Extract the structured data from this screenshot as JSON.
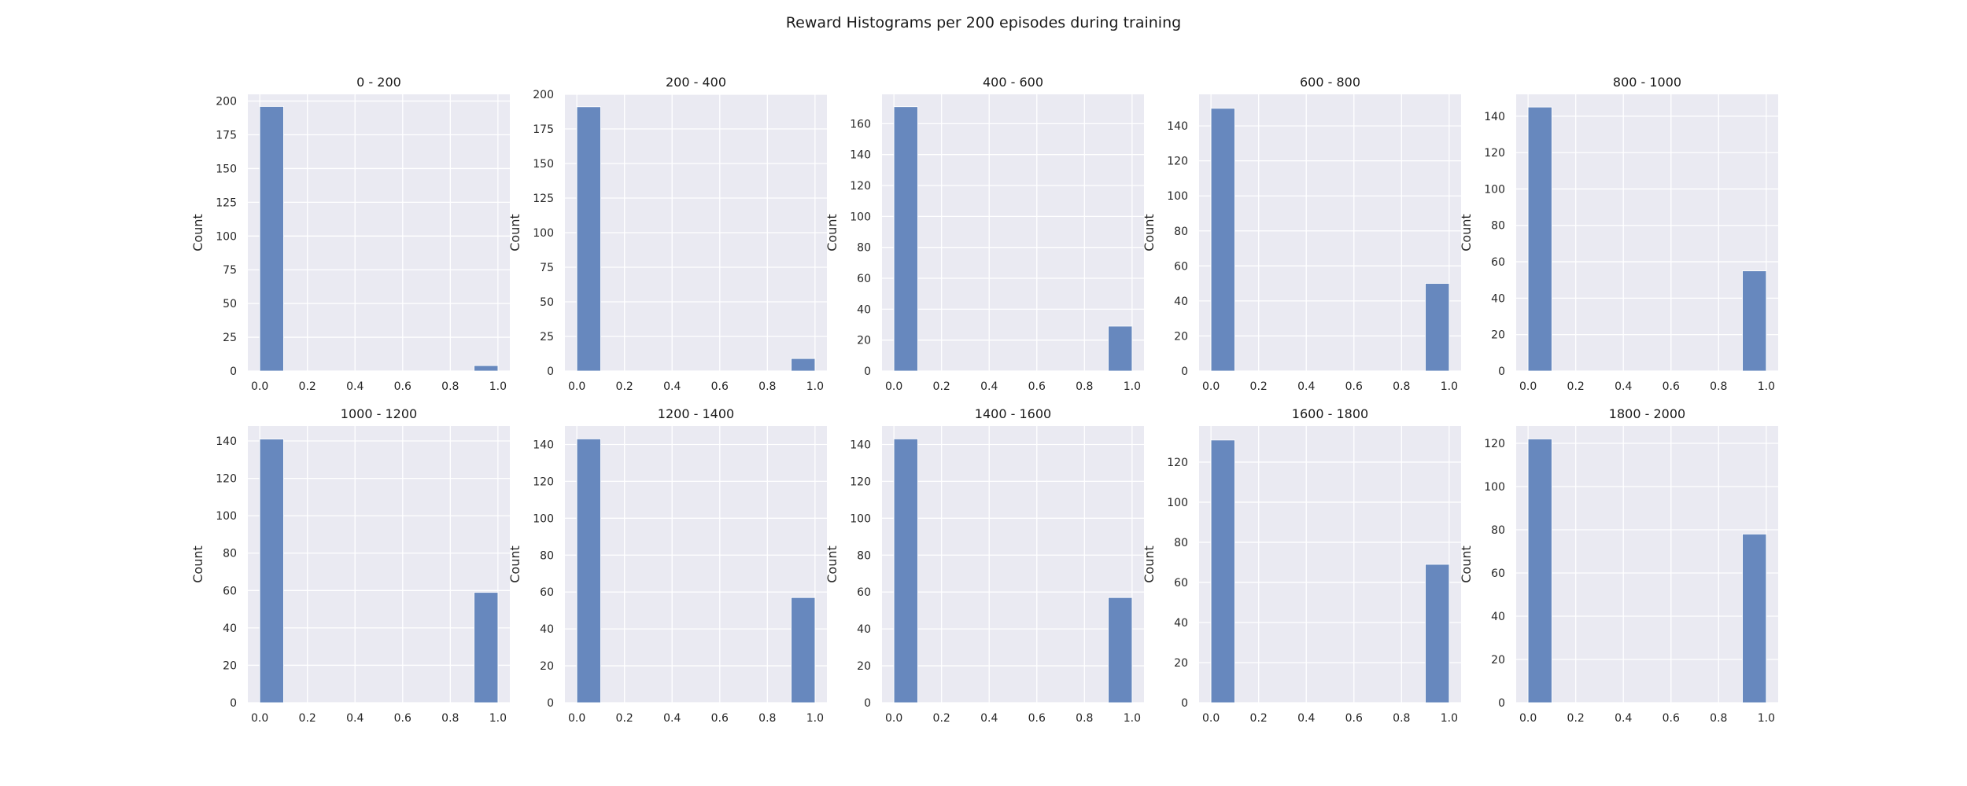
{
  "chart_data": {
    "title": "Reward Histograms per 200 episodes during training",
    "type": "bar",
    "panels": [
      {
        "title": "0 - 200",
        "ylabel": "Count",
        "xlim": [
          -0.05,
          1.05
        ],
        "ylim": [
          0,
          205
        ],
        "xticks": [
          "0.0",
          "0.2",
          "0.4",
          "0.6",
          "0.8",
          "1.0"
        ],
        "yticks": [
          0,
          25,
          50,
          75,
          100,
          125,
          150,
          175,
          200
        ],
        "bins": [
          {
            "start": 0.0,
            "end": 0.1,
            "value": 196
          },
          {
            "start": 0.9,
            "end": 1.0,
            "value": 4
          }
        ]
      },
      {
        "title": "200 - 400",
        "ylabel": "Count",
        "xlim": [
          -0.05,
          1.05
        ],
        "ylim": [
          0,
          200
        ],
        "xticks": [
          "0.0",
          "0.2",
          "0.4",
          "0.6",
          "0.8",
          "1.0"
        ],
        "yticks": [
          0,
          25,
          50,
          75,
          100,
          125,
          150,
          175,
          200
        ],
        "bins": [
          {
            "start": 0.0,
            "end": 0.1,
            "value": 191
          },
          {
            "start": 0.9,
            "end": 1.0,
            "value": 9
          }
        ]
      },
      {
        "title": "400 - 600",
        "ylabel": "Count",
        "xlim": [
          -0.05,
          1.05
        ],
        "ylim": [
          0,
          179
        ],
        "xticks": [
          "0.0",
          "0.2",
          "0.4",
          "0.6",
          "0.8",
          "1.0"
        ],
        "yticks": [
          0,
          20,
          40,
          60,
          80,
          100,
          120,
          140,
          160
        ],
        "bins": [
          {
            "start": 0.0,
            "end": 0.1,
            "value": 171
          },
          {
            "start": 0.9,
            "end": 1.0,
            "value": 29
          }
        ]
      },
      {
        "title": "600 - 800",
        "ylabel": "Count",
        "xlim": [
          -0.05,
          1.05
        ],
        "ylim": [
          0,
          158
        ],
        "xticks": [
          "0.0",
          "0.2",
          "0.4",
          "0.6",
          "0.8",
          "1.0"
        ],
        "yticks": [
          0,
          20,
          40,
          60,
          80,
          100,
          120,
          140
        ],
        "bins": [
          {
            "start": 0.0,
            "end": 0.1,
            "value": 150
          },
          {
            "start": 0.9,
            "end": 1.0,
            "value": 50
          }
        ]
      },
      {
        "title": "800 - 1000",
        "ylabel": "Count",
        "xlim": [
          -0.05,
          1.05
        ],
        "ylim": [
          0,
          152
        ],
        "xticks": [
          "0.0",
          "0.2",
          "0.4",
          "0.6",
          "0.8",
          "1.0"
        ],
        "yticks": [
          0,
          20,
          40,
          60,
          80,
          100,
          120,
          140
        ],
        "bins": [
          {
            "start": 0.0,
            "end": 0.1,
            "value": 145
          },
          {
            "start": 0.9,
            "end": 1.0,
            "value": 55
          }
        ]
      },
      {
        "title": "1000 - 1200",
        "ylabel": "Count",
        "xlim": [
          -0.05,
          1.05
        ],
        "ylim": [
          0,
          148
        ],
        "xticks": [
          "0.0",
          "0.2",
          "0.4",
          "0.6",
          "0.8",
          "1.0"
        ],
        "yticks": [
          0,
          20,
          40,
          60,
          80,
          100,
          120,
          140
        ],
        "bins": [
          {
            "start": 0.0,
            "end": 0.1,
            "value": 141
          },
          {
            "start": 0.9,
            "end": 1.0,
            "value": 59
          }
        ]
      },
      {
        "title": "1200 - 1400",
        "ylabel": "Count",
        "xlim": [
          -0.05,
          1.05
        ],
        "ylim": [
          0,
          150
        ],
        "xticks": [
          "0.0",
          "0.2",
          "0.4",
          "0.6",
          "0.8",
          "1.0"
        ],
        "yticks": [
          0,
          20,
          40,
          60,
          80,
          100,
          120,
          140
        ],
        "bins": [
          {
            "start": 0.0,
            "end": 0.1,
            "value": 143
          },
          {
            "start": 0.9,
            "end": 1.0,
            "value": 57
          }
        ]
      },
      {
        "title": "1400 - 1600",
        "ylabel": "Count",
        "xlim": [
          -0.05,
          1.05
        ],
        "ylim": [
          0,
          150
        ],
        "xticks": [
          "0.0",
          "0.2",
          "0.4",
          "0.6",
          "0.8",
          "1.0"
        ],
        "yticks": [
          0,
          20,
          40,
          60,
          80,
          100,
          120,
          140
        ],
        "bins": [
          {
            "start": 0.0,
            "end": 0.1,
            "value": 143
          },
          {
            "start": 0.9,
            "end": 1.0,
            "value": 57
          }
        ]
      },
      {
        "title": "1600 - 1800",
        "ylabel": "Count",
        "xlim": [
          -0.05,
          1.05
        ],
        "ylim": [
          0,
          138
        ],
        "xticks": [
          "0.0",
          "0.2",
          "0.4",
          "0.6",
          "0.8",
          "1.0"
        ],
        "yticks": [
          0,
          20,
          40,
          60,
          80,
          100,
          120
        ],
        "bins": [
          {
            "start": 0.0,
            "end": 0.1,
            "value": 131
          },
          {
            "start": 0.9,
            "end": 1.0,
            "value": 69
          }
        ]
      },
      {
        "title": "1800 - 2000",
        "ylabel": "Count",
        "xlim": [
          -0.05,
          1.05
        ],
        "ylim": [
          0,
          128
        ],
        "xticks": [
          "0.0",
          "0.2",
          "0.4",
          "0.6",
          "0.8",
          "1.0"
        ],
        "yticks": [
          0,
          20,
          40,
          60,
          80,
          100,
          120
        ],
        "bins": [
          {
            "start": 0.0,
            "end": 0.1,
            "value": 122
          },
          {
            "start": 0.9,
            "end": 1.0,
            "value": 78
          }
        ]
      }
    ],
    "style": {
      "panel_background": "#eaeaf2",
      "bar_color": "#6788be",
      "grid_color": "#ffffff"
    },
    "grid": true
  }
}
